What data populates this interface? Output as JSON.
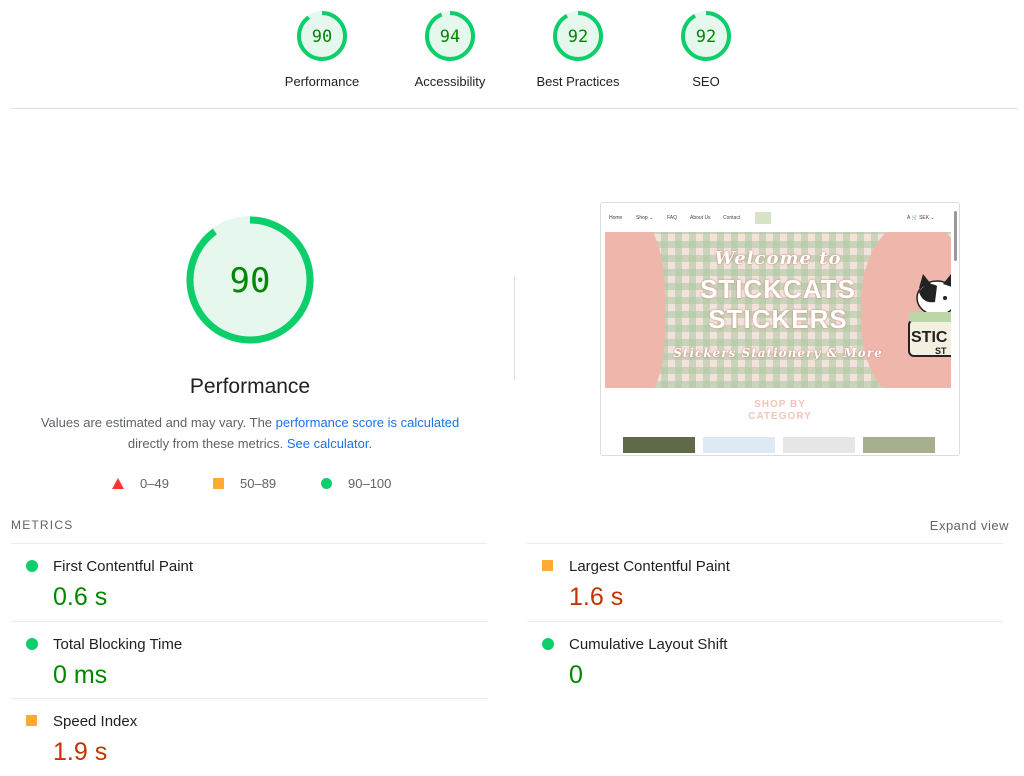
{
  "scores": [
    {
      "label": "Performance",
      "value": "90"
    },
    {
      "label": "Accessibility",
      "value": "94"
    },
    {
      "label": "Best Practices",
      "value": "92"
    },
    {
      "label": "SEO",
      "value": "92"
    }
  ],
  "performance": {
    "score": "90",
    "title": "Performance",
    "desc_prefix": "Values are estimated and may vary. The ",
    "link1": "performance score is calculated",
    "desc_middle": " directly from these metrics. ",
    "link2": "See calculator."
  },
  "legend": [
    {
      "range": "0–49",
      "shape": "triangle",
      "color": "#ff3333"
    },
    {
      "range": "50–89",
      "shape": "square",
      "color": "#ffaa33"
    },
    {
      "range": "90–100",
      "shape": "circle",
      "color": "#0cce6b"
    }
  ],
  "screenshot": {
    "nav": [
      "Home",
      "Shop ⌄",
      "FAQ",
      "About Us",
      "Contact"
    ],
    "nav_right": "A 🛒 SEK ⌄",
    "hero_lines": [
      "Welcome to",
      "STICKCATS",
      "STICKERS",
      "Stickers Stationery & More"
    ],
    "cat_sign": "STIC",
    "cat_sign2": "ST",
    "shop_by": "SHOP BY",
    "category": "CATEGORY"
  },
  "metrics": {
    "heading": "METRICS",
    "expand_label": "Expand view",
    "items": [
      {
        "name": "First Contentful Paint",
        "value": "0.6 s",
        "status": "good"
      },
      {
        "name": "Largest Contentful Paint",
        "value": "1.6 s",
        "status": "average"
      },
      {
        "name": "Total Blocking Time",
        "value": "0 ms",
        "status": "good"
      },
      {
        "name": "Cumulative Layout Shift",
        "value": "0",
        "status": "good"
      },
      {
        "name": "Speed Index",
        "value": "1.9 s",
        "status": "average"
      }
    ]
  },
  "colors": {
    "pass": "#0cce6b",
    "pass_text": "#008800",
    "average": "#ffaa33",
    "average_text": "#c33300",
    "fail": "#ff3333",
    "link": "#1a73e8"
  }
}
